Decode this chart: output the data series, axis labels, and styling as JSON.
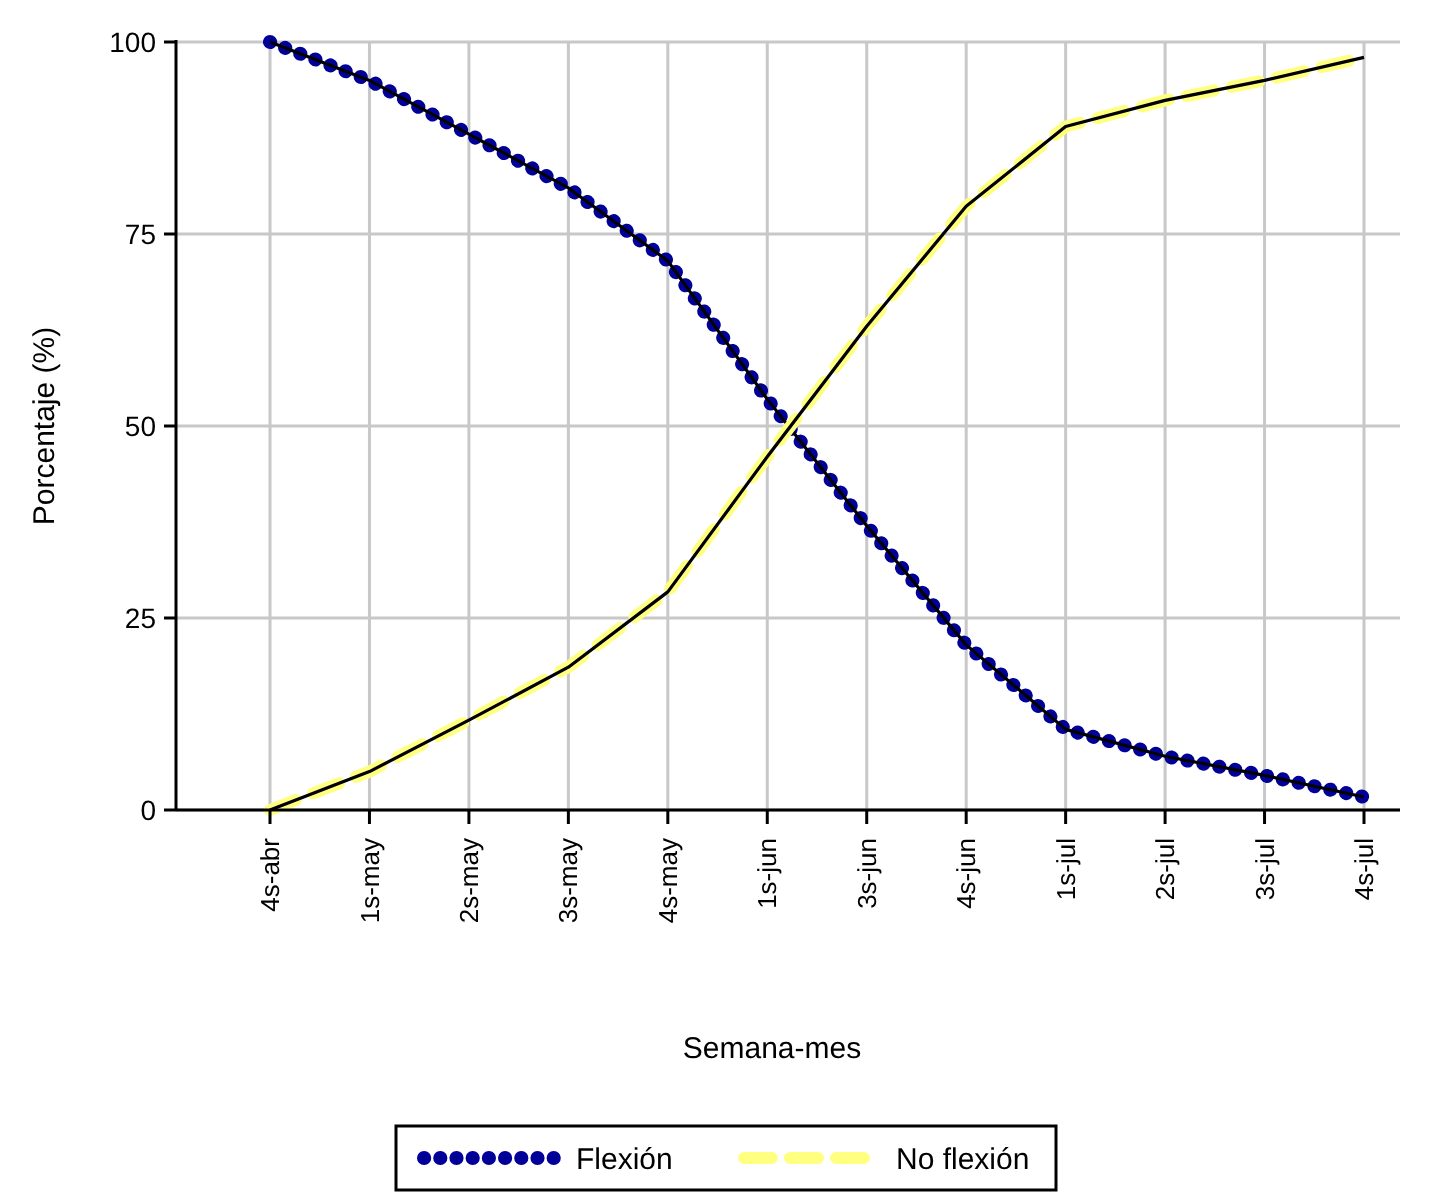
{
  "chart_data": {
    "type": "line",
    "xlabel": "Semana-mes",
    "ylabel": "Porcentaje (%)",
    "categories": [
      "4s-abr",
      "1s-may",
      "2s-may",
      "3s-may",
      "4s-may",
      "1s-jun",
      "3s-jun",
      "4s-jun",
      "1s-jul",
      "2s-jul",
      "3s-jul",
      "4s-jul"
    ],
    "series": [
      {
        "name": "Flexión",
        "color": "#000099",
        "line_style": "dotted",
        "values": [
          100,
          95,
          88,
          81,
          71.5,
          53.5,
          37,
          21.5,
          10.5,
          7,
          4.5,
          1.7
        ]
      },
      {
        "name": "No flexión",
        "color": "#ffff80",
        "line_style": "dashed",
        "values": [
          0,
          5,
          11.7,
          18.6,
          28.4,
          46,
          63,
          78.6,
          89,
          92.4,
          95,
          98
        ]
      }
    ],
    "ylim": [
      0,
      100
    ],
    "yticks": [
      0,
      25,
      50,
      75,
      100
    ],
    "grid": true,
    "legend": "bottom"
  }
}
